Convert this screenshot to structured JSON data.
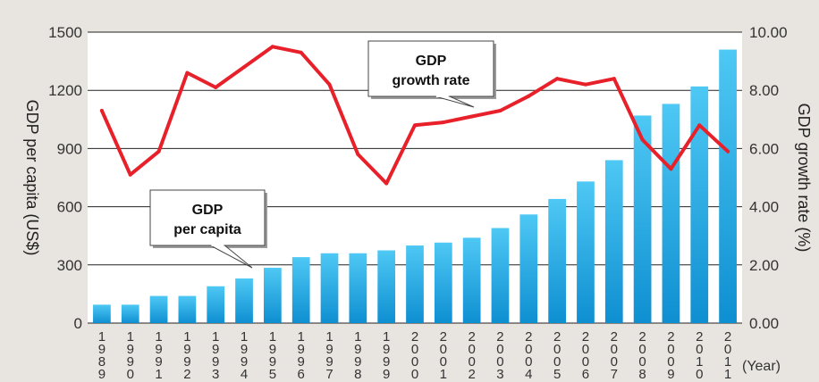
{
  "chart_data": {
    "type": "bar+line",
    "x": [
      "1989",
      "1990",
      "1991",
      "1992",
      "1993",
      "1994",
      "1995",
      "1996",
      "1997",
      "1998",
      "1999",
      "2000",
      "2001",
      "2002",
      "2003",
      "2004",
      "2005",
      "2006",
      "2007",
      "2008",
      "2009",
      "2010",
      "2011"
    ],
    "xlabel": "(Year)",
    "series": [
      {
        "name": "GDP per capita",
        "type": "bar",
        "axis": "left",
        "color": "#29a8e0",
        "values": [
          95,
          95,
          140,
          140,
          190,
          230,
          285,
          340,
          360,
          360,
          375,
          400,
          415,
          440,
          490,
          560,
          640,
          730,
          840,
          1070,
          1130,
          1220,
          1410
        ]
      },
      {
        "name": "GDP growth rate",
        "type": "line",
        "axis": "right",
        "color": "#e8202a",
        "values": [
          7.3,
          5.1,
          5.9,
          8.6,
          8.1,
          8.8,
          9.5,
          9.3,
          8.2,
          5.8,
          4.8,
          6.8,
          6.9,
          7.1,
          7.3,
          7.8,
          8.4,
          8.2,
          8.4,
          6.3,
          5.3,
          6.8,
          5.9
        ]
      }
    ],
    "y_left": {
      "label": "GDP per capita (US$)",
      "ylim": [
        0,
        1500
      ],
      "ticks": [
        "0",
        "300",
        "600",
        "900",
        "1200",
        "1500"
      ]
    },
    "y_right": {
      "label": "GDP growth rate (%)",
      "ylim": [
        0,
        10
      ],
      "ticks": [
        "0.00",
        "2.00",
        "4.00",
        "6.00",
        "8.00",
        "10.00"
      ]
    },
    "grid": true,
    "callouts": {
      "bar": {
        "line1": "GDP",
        "line2": "per capita"
      },
      "line": {
        "line1": "GDP",
        "line2": "growth rate"
      }
    }
  }
}
